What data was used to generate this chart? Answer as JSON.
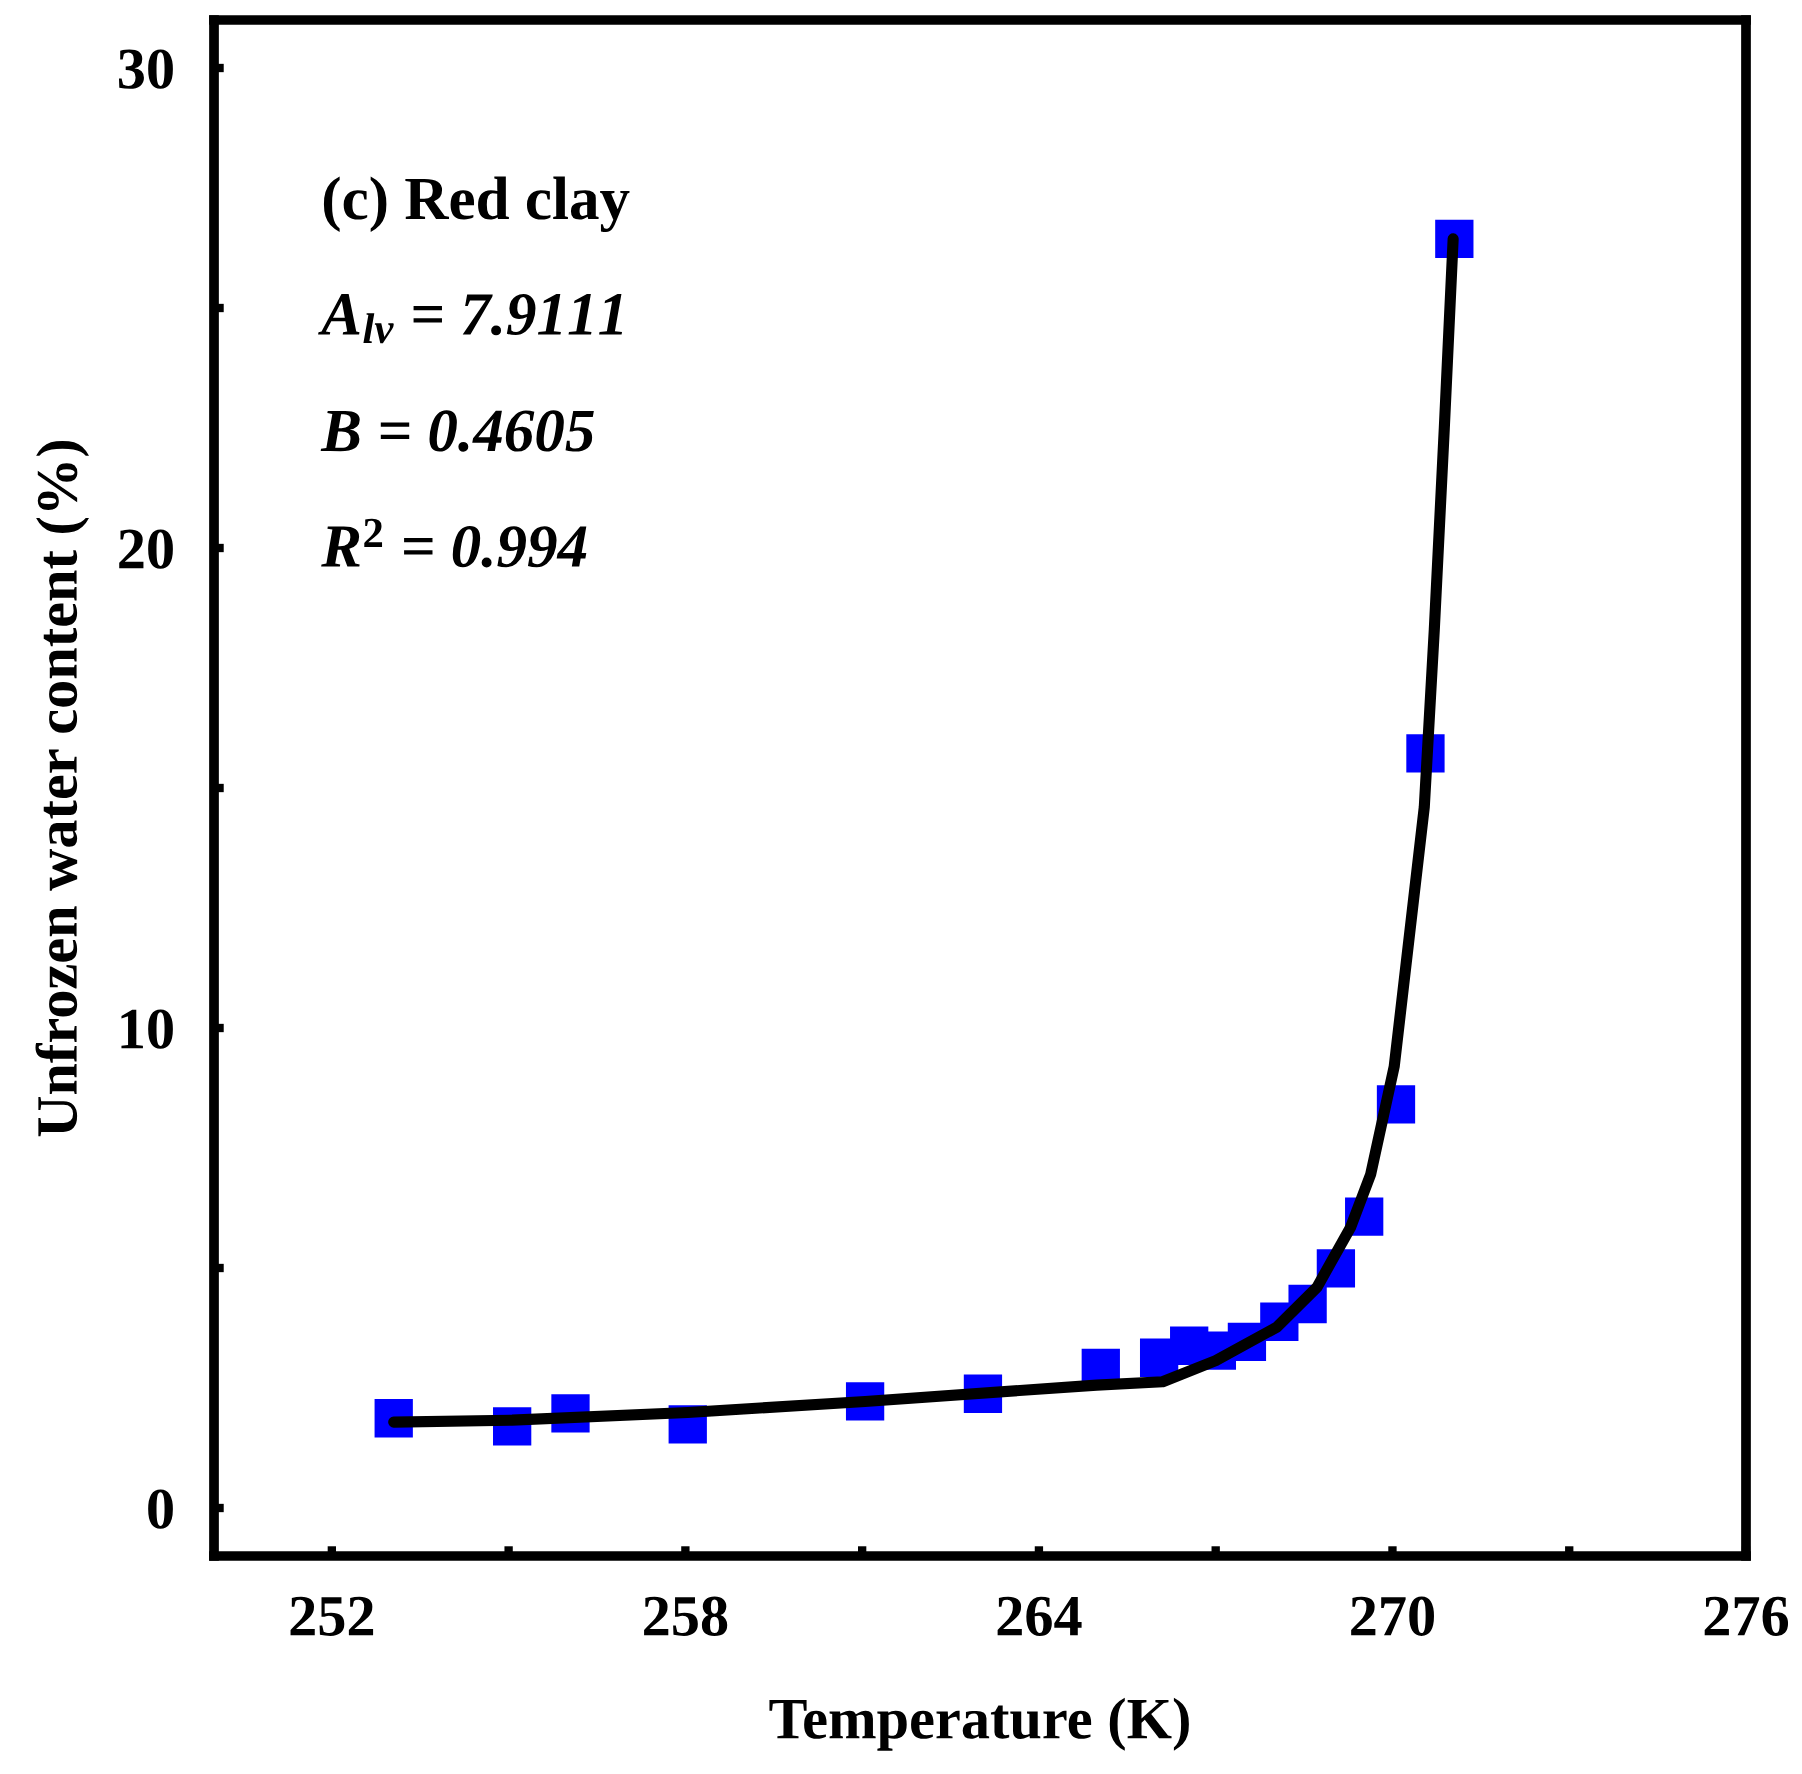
{
  "chart_data": {
    "type": "scatter",
    "xlabel": "Temperature (K)",
    "ylabel": "Unfrozen water content (%)",
    "xlim": [
      250,
      276
    ],
    "ylim": [
      -1,
      31
    ],
    "xticks": [
      252,
      {
        "value": 255,
        "label": null
      },
      258,
      {
        "value": 261,
        "label": null
      },
      264,
      {
        "value": 267,
        "label": null
      },
      270,
      {
        "value": 273,
        "label": null
      },
      276
    ],
    "yticks": [
      0,
      {
        "value": 5,
        "label": null
      },
      10,
      {
        "value": 15,
        "label": null
      },
      20,
      {
        "value": 25,
        "label": null
      },
      30
    ],
    "grid": false,
    "legend": false,
    "series": [
      {
        "color": "#0000ff",
        "marker": "square",
        "x": [
          253.05,
          255.06,
          256.05,
          258.04,
          261.05,
          263.05,
          265.05,
          266.04,
          266.55,
          267.02,
          267.53,
          268.08,
          268.56,
          269.04,
          269.52,
          270.06,
          270.56,
          271.05
        ],
        "values": [
          1.87,
          1.7,
          1.97,
          1.74,
          2.22,
          2.38,
          2.92,
          3.13,
          3.38,
          3.28,
          3.46,
          3.88,
          4.25,
          4.99,
          6.07,
          8.41,
          15.72,
          26.44
        ]
      },
      {
        "type": "line",
        "color": "#000000",
        "marker": "none",
        "line_style": "solid",
        "x": [
          253.05,
          255.06,
          258.04,
          261.05,
          264.98,
          266.1,
          267.0,
          268.04,
          268.72,
          269.29,
          269.63,
          270.03,
          270.54,
          270.71,
          270.88,
          271.03
        ],
        "values": [
          1.79,
          1.83,
          1.99,
          2.22,
          2.56,
          2.63,
          3.07,
          3.77,
          4.6,
          5.85,
          6.95,
          9.2,
          14.6,
          18.3,
          22.5,
          26.44
        ]
      }
    ],
    "annotations": [
      "(c) Red clay",
      "A$_{lv}$ = 7.9111",
      "B = 0.4605",
      "R$^{2}$ = 0.994"
    ]
  }
}
